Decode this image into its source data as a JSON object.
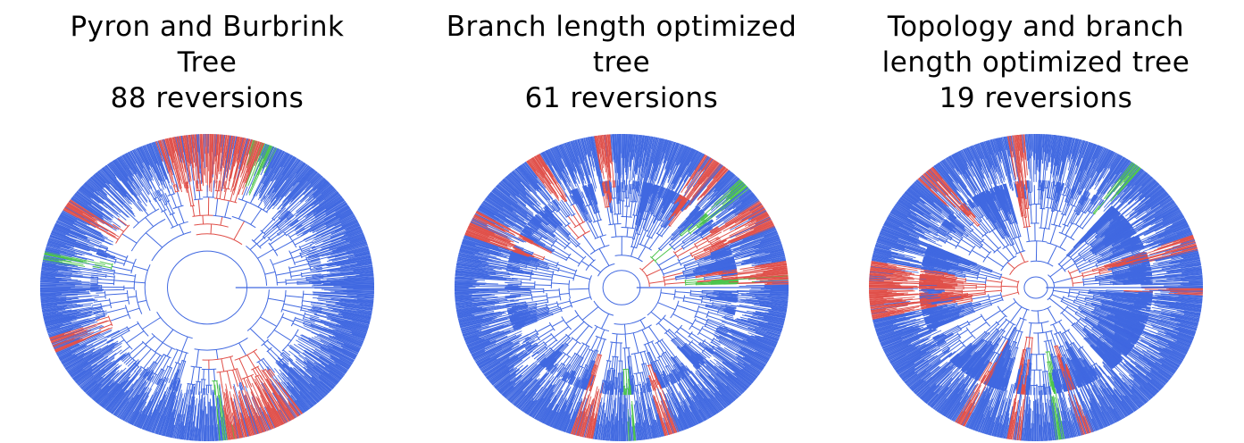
{
  "palette": {
    "background": "#ffffff",
    "default_branch": "#4169e1",
    "reversion_branch": "#e0504a",
    "transition_branch": "#4cc44c"
  },
  "panels": [
    {
      "title_lines": [
        "Pyron and Burbrink",
        "Tree",
        "88 reversions"
      ],
      "reversions": 88
    },
    {
      "title_lines": [
        "Branch length optimized",
        "tree",
        "61 reversions"
      ],
      "reversions": 61
    },
    {
      "title_lines": [
        "Topology and branch",
        "length optimized tree",
        "19 reversions"
      ],
      "reversions": 19
    }
  ]
}
